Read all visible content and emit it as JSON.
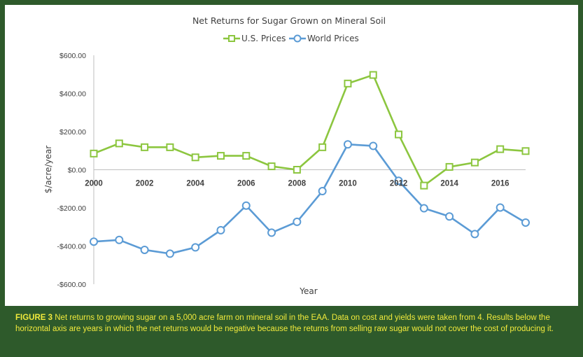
{
  "chart_data": {
    "type": "line",
    "title": "Net Returns for Sugar Grown on Mineral Soil",
    "xlabel": "Year",
    "ylabel": "$/acre/year",
    "x": [
      2000,
      2001,
      2002,
      2003,
      2004,
      2005,
      2006,
      2007,
      2008,
      2009,
      2010,
      2011,
      2012,
      2013,
      2014,
      2015,
      2016,
      2017
    ],
    "x_tick_labels": [
      "2000",
      "2002",
      "2004",
      "2006",
      "2008",
      "2010",
      "2012",
      "2014",
      "2016"
    ],
    "x_ticks": [
      2000,
      2002,
      2004,
      2006,
      2008,
      2010,
      2012,
      2014,
      2016
    ],
    "y_tick_labels": [
      "$600.00",
      "$400.00",
      "$200.00",
      "$0.00",
      "-$200.00",
      "-$400.00",
      "-$600.00"
    ],
    "y_ticks": [
      600,
      400,
      200,
      0,
      -200,
      -400,
      -600
    ],
    "ylim": [
      -600,
      600
    ],
    "xlim": [
      2000,
      2017
    ],
    "grid": false,
    "legend_position": "top-center",
    "series": [
      {
        "name": "U.S. Prices",
        "color": "#8cc63f",
        "marker": "square",
        "values": [
          85,
          138,
          118,
          118,
          65,
          73,
          73,
          18,
          0,
          118,
          452,
          497,
          185,
          -83,
          15,
          38,
          108,
          98
        ]
      },
      {
        "name": "World Prices",
        "color": "#5b9bd5",
        "marker": "circle",
        "values": [
          -377,
          -368,
          -420,
          -440,
          -407,
          -317,
          -188,
          -330,
          -273,
          -112,
          133,
          125,
          -58,
          -202,
          -245,
          -337,
          -198,
          -277
        ]
      }
    ]
  },
  "caption": {
    "label": "FIGURE 3",
    "text": " Net returns to growing sugar on a 5,000 acre farm on mineral soil in the EAA. Data on cost and yields were taken from 4. Results below the horizontal axis are years in which the net returns would be negative because the returns from selling raw sugar would not cover the cost of producing it."
  },
  "colors": {
    "background": "#2e5a2b",
    "caption_text": "#f1ea3c"
  }
}
